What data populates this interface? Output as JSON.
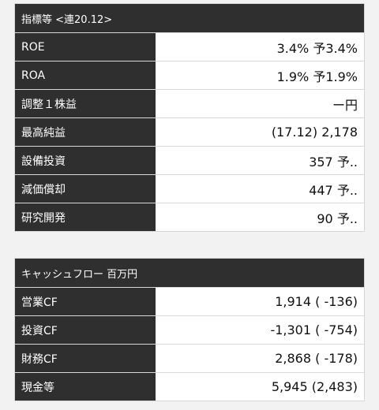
{
  "indicators": {
    "title": "指標等 <連20.12>",
    "rows": [
      {
        "label": "ROE",
        "value": "3.4% 予3.4%"
      },
      {
        "label": "ROA",
        "value": "1.9% 予1.9%"
      },
      {
        "label": "調整１株益",
        "value": "ー円"
      },
      {
        "label": "最高純益",
        "value": "(17.12) 2,178"
      },
      {
        "label": "設備投資",
        "value": "357 予.."
      },
      {
        "label": "減価償却",
        "value": "447 予.."
      },
      {
        "label": "研究開発",
        "value": "90 予.."
      }
    ]
  },
  "cashflow": {
    "title": "キャッシュフロー 百万円",
    "rows": [
      {
        "label": "営業CF",
        "value": "1,914 ( -136)"
      },
      {
        "label": "投資CF",
        "value": "-1,301 ( -754)"
      },
      {
        "label": "財務CF",
        "value": "2,868 ( -178)"
      },
      {
        "label": "現金等",
        "value": "5,945 (2,483)"
      }
    ]
  }
}
